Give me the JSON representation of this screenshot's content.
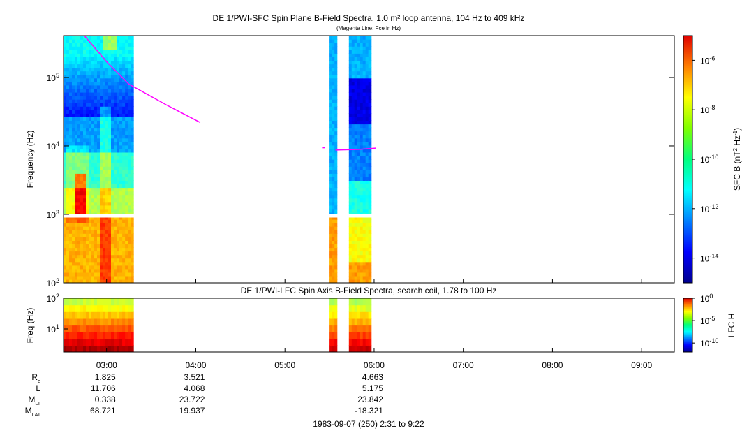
{
  "chart_data": [
    {
      "type": "heatmap",
      "title": "DE 1/PWI-SFC  Spin Plane B-Field Spectra, 1.0 m² loop antenna, 104 Hz to 409 kHz",
      "subtitle": "(Magenta Line: Fce in Hz)",
      "ylabel": "Frequency (Hz)",
      "yscale": "log",
      "ylim": [
        100,
        409000
      ],
      "yticks": [
        {
          "base": "10",
          "exp": "2"
        },
        {
          "base": "10",
          "exp": "3"
        },
        {
          "base": "10",
          "exp": "4"
        },
        {
          "base": "10",
          "exp": "5"
        }
      ],
      "xlim": [
        "02:31",
        "09:22"
      ],
      "data_intervals": [
        {
          "start": "02:31",
          "end": "03:18"
        },
        {
          "start": "05:30",
          "end": "05:35"
        },
        {
          "start": "05:43",
          "end": "05:58"
        }
      ],
      "colorbar": {
        "label": "SFC B (nT² Hz⁻¹)",
        "label_parts": {
          "main": "SFC B (nT",
          "sup1": "2",
          "mid": " Hz",
          "sup2": "-1",
          "end": ")"
        },
        "scale": "log",
        "range": [
          1e-15,
          1e-05
        ],
        "ticks": [
          {
            "base": "10",
            "exp": "-6"
          },
          {
            "base": "10",
            "exp": "-8"
          },
          {
            "base": "10",
            "exp": "-10"
          },
          {
            "base": "10",
            "exp": "-12"
          },
          {
            "base": "10",
            "exp": "-14"
          }
        ]
      },
      "fce_line": {
        "color": "#ff00ff",
        "segments": [
          [
            [
              "02:45",
              409000
            ],
            [
              "03:00",
              170000
            ],
            [
              "03:15",
              80000
            ],
            [
              "03:40",
              40000
            ],
            [
              "04:03",
              22000
            ]
          ],
          [
            [
              "05:25",
              9400
            ],
            [
              "05:27",
              9400
            ]
          ],
          [
            [
              "05:34",
              8700
            ],
            [
              "05:50",
              8900
            ],
            [
              "06:01",
              9300
            ]
          ]
        ]
      }
    },
    {
      "type": "heatmap",
      "title": "DE 1/PWI-LFC  Spin Axis B-Field Spectra, search coil, 1.78 to 100 Hz",
      "ylabel": "Freq (Hz)",
      "yscale": "log",
      "ylim": [
        1.78,
        100
      ],
      "yticks": [
        {
          "base": "10",
          "exp": "1"
        },
        {
          "base": "10",
          "exp": "2"
        }
      ],
      "xlim": [
        "02:31",
        "09:22"
      ],
      "xticks": [
        "03:00",
        "04:00",
        "05:00",
        "06:00",
        "07:00",
        "08:00",
        "09:00"
      ],
      "colorbar": {
        "label": "LFC H",
        "scale": "log",
        "range": [
          1e-12,
          1
        ],
        "ticks": [
          {
            "base": "10",
            "exp": "0"
          },
          {
            "base": "10",
            "exp": "-5"
          },
          {
            "base": "10",
            "exp": "-10"
          }
        ]
      }
    }
  ],
  "ephemeris": {
    "rows": [
      {
        "label": "R",
        "sub": "e",
        "values": [
          "1.825",
          "3.521",
          "4.663"
        ]
      },
      {
        "label": "L",
        "sub": "",
        "values": [
          "11.706",
          "4.068",
          "5.175"
        ]
      },
      {
        "label": "M",
        "sub": "LT",
        "values": [
          "0.338",
          "23.722",
          "23.842"
        ]
      },
      {
        "label": "M",
        "sub": "LAT",
        "values": [
          "68.721",
          "19.937",
          "-18.321"
        ]
      }
    ],
    "columns_at": [
      "03:00",
      "04:00",
      "06:00"
    ]
  },
  "footer": "1983-09-07 (250) 2:31 to 9:22",
  "colors": {
    "fce_line": "#ff00ff",
    "frame": "#000000"
  }
}
